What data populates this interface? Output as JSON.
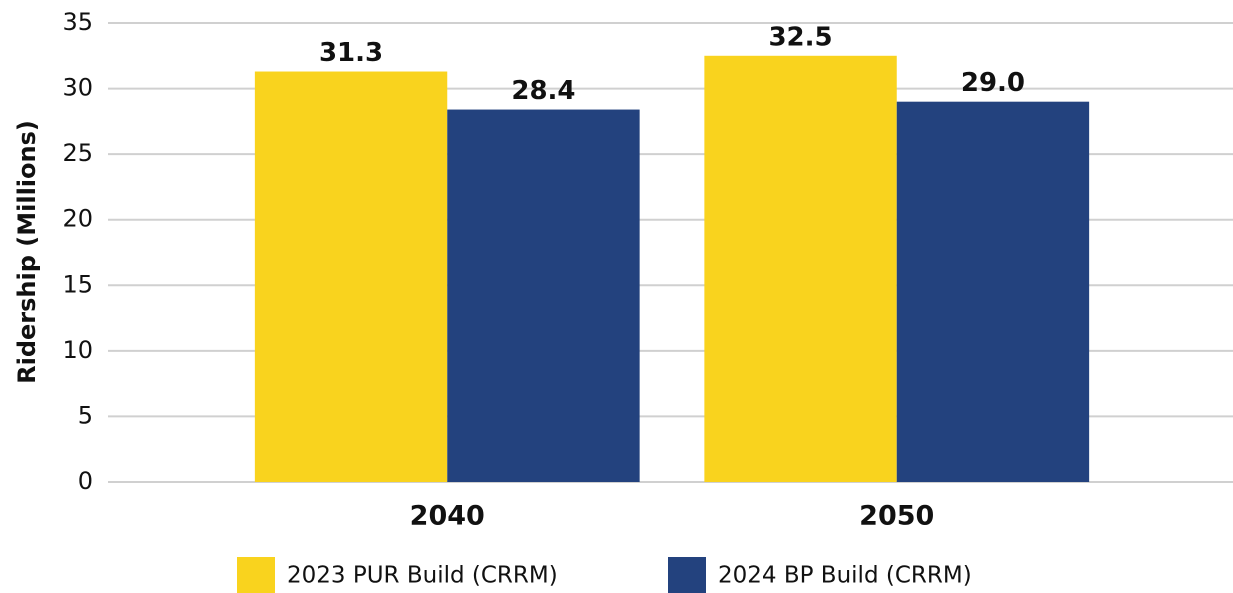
{
  "chart_data": {
    "type": "bar",
    "y_label": "Ridership (Millions)",
    "categories": [
      "2040",
      "2050"
    ],
    "series": [
      {
        "name": "2023 PUR Build (CRRM)",
        "color": "#f9d31e",
        "values": [
          31.3,
          32.5
        ],
        "value_labels": [
          "31.3",
          "32.5"
        ]
      },
      {
        "name": "2024 BP Build (CRRM)",
        "color": "#23427e",
        "values": [
          28.4,
          29.0
        ],
        "value_labels": [
          "28.4",
          "29.0"
        ]
      }
    ],
    "ylim": [
      0,
      35
    ],
    "yticks": [
      0,
      5,
      10,
      15,
      20,
      25,
      30,
      35
    ],
    "grid": true
  }
}
